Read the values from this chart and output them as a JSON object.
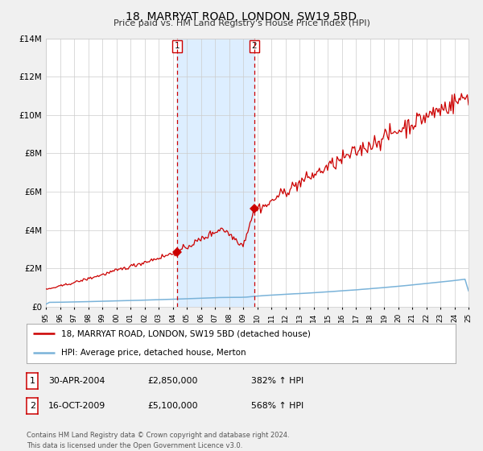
{
  "title": "18, MARRYAT ROAD, LONDON, SW19 5BD",
  "subtitle": "Price paid vs. HM Land Registry's House Price Index (HPI)",
  "x_start_year": 1995,
  "x_end_year": 2025,
  "ylim": [
    0,
    14000000
  ],
  "yticks": [
    0,
    2000000,
    4000000,
    6000000,
    8000000,
    10000000,
    12000000,
    14000000
  ],
  "ytick_labels": [
    "£0",
    "£2M",
    "£4M",
    "£6M",
    "£8M",
    "£10M",
    "£12M",
    "£14M"
  ],
  "sale1_year": 2004.33,
  "sale1_price": 2850000,
  "sale1_label": "1",
  "sale2_year": 2009.79,
  "sale2_price": 5100000,
  "sale2_label": "2",
  "shade_color": "#ddeeff",
  "dashed_color": "#cc0000",
  "hpi_line_color": "#7ab3d9",
  "price_line_color": "#cc0000",
  "legend_line1": "18, MARRYAT ROAD, LONDON, SW19 5BD (detached house)",
  "legend_line2": "HPI: Average price, detached house, Merton",
  "table_row1": [
    "1",
    "30-APR-2004",
    "£2,850,000",
    "382% ↑ HPI"
  ],
  "table_row2": [
    "2",
    "16-OCT-2009",
    "£5,100,000",
    "568% ↑ HPI"
  ],
  "footnote": "Contains HM Land Registry data © Crown copyright and database right 2024.\nThis data is licensed under the Open Government Licence v3.0.",
  "background_color": "#f0f0f0",
  "plot_bg_color": "#ffffff"
}
